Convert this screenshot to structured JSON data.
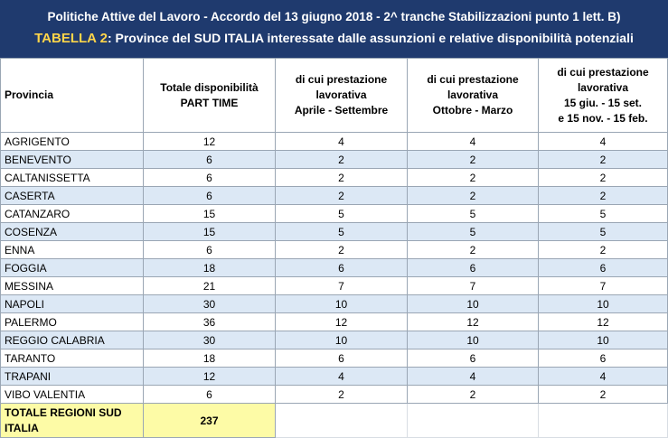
{
  "header": {
    "line1": "Politiche Attive del Lavoro - Accordo del 13 giugno 2018 - 2^ tranche Stabilizzazioni punto 1 lett. B)",
    "line2_prefix": "TABELLA 2",
    "line2_rest": ": Province del SUD ITALIA interessate dalle assunzioni e relative disponibilità potenziali"
  },
  "colors": {
    "header_bg": "#1f3a6e",
    "header_accent": "#ffd54a",
    "alt_row": "#dce8f5",
    "total_bg": "#fdfba6"
  },
  "columns": {
    "provincia": "Provincia",
    "totale_l1": "Totale disponibilità",
    "totale_l2": "PART TIME",
    "c1_l1": "di cui prestazione",
    "c1_l2": "lavorativa",
    "c1_l3": "Aprile - Settembre",
    "c2_l1": "di cui prestazione",
    "c2_l2": "lavorativa",
    "c2_l3": "Ottobre - Marzo",
    "c3_l1": "di cui prestazione",
    "c3_l2": "lavorativa",
    "c3_l3": "15 giu.  - 15 set.",
    "c3_l4": "e 15 nov. - 15 feb."
  },
  "rows": [
    {
      "name": "AGRIGENTO",
      "total": "12",
      "c1": "4",
      "c2": "4",
      "c3": "4"
    },
    {
      "name": "BENEVENTO",
      "total": "6",
      "c1": "2",
      "c2": "2",
      "c3": "2"
    },
    {
      "name": "CALTANISSETTA",
      "total": "6",
      "c1": "2",
      "c2": "2",
      "c3": "2"
    },
    {
      "name": "CASERTA",
      "total": "6",
      "c1": "2",
      "c2": "2",
      "c3": "2"
    },
    {
      "name": "CATANZARO",
      "total": "15",
      "c1": "5",
      "c2": "5",
      "c3": "5"
    },
    {
      "name": "COSENZA",
      "total": "15",
      "c1": "5",
      "c2": "5",
      "c3": "5"
    },
    {
      "name": "ENNA",
      "total": "6",
      "c1": "2",
      "c2": "2",
      "c3": "2"
    },
    {
      "name": "FOGGIA",
      "total": "18",
      "c1": "6",
      "c2": "6",
      "c3": "6"
    },
    {
      "name": "MESSINA",
      "total": "21",
      "c1": "7",
      "c2": "7",
      "c3": "7"
    },
    {
      "name": "NAPOLI",
      "total": "30",
      "c1": "10",
      "c2": "10",
      "c3": "10"
    },
    {
      "name": "PALERMO",
      "total": "36",
      "c1": "12",
      "c2": "12",
      "c3": "12"
    },
    {
      "name": "REGGIO CALABRIA",
      "total": "30",
      "c1": "10",
      "c2": "10",
      "c3": "10"
    },
    {
      "name": "TARANTO",
      "total": "18",
      "c1": "6",
      "c2": "6",
      "c3": "6"
    },
    {
      "name": "TRAPANI",
      "total": "12",
      "c1": "4",
      "c2": "4",
      "c3": "4"
    },
    {
      "name": "VIBO VALENTIA",
      "total": "6",
      "c1": "2",
      "c2": "2",
      "c3": "2"
    }
  ],
  "totals": {
    "label_l1": "TOTALE REGIONI SUD",
    "label_l2": "ITALIA",
    "value": "237"
  }
}
